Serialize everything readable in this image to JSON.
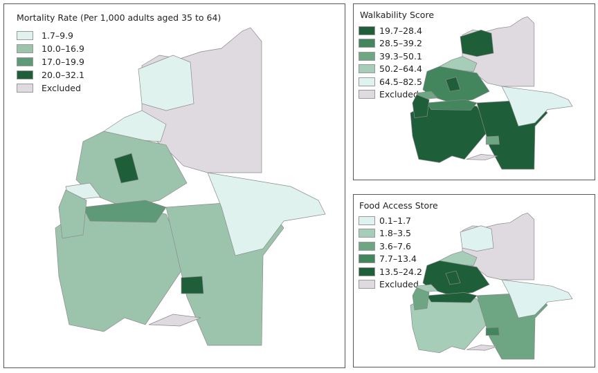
{
  "maps": [
    {
      "title": "Mortality Rate (Per 1,000 adults aged 35 to 64)",
      "legend": [
        {
          "label": "1.7–9.9",
          "color": "#dff2ee"
        },
        {
          "label": "10.0–16.9",
          "color": "#9cc4ad"
        },
        {
          "label": "17.0–19.9",
          "color": "#5e9a78"
        },
        {
          "label": "20.0–32.1",
          "color": "#1e5e38"
        },
        {
          "label": "Excluded",
          "color": "#dedadf"
        }
      ],
      "region_classes": [
        4,
        0,
        0,
        1,
        3,
        1,
        2,
        1,
        0,
        3,
        4,
        0,
        1
      ]
    },
    {
      "title": "Walkability Score",
      "legend": [
        {
          "label": "19.7–28.4",
          "color": "#1e5e38"
        },
        {
          "label": "28.5–39.2",
          "color": "#43855c"
        },
        {
          "label": "39.3–50.1",
          "color": "#6ea582"
        },
        {
          "label": "50.2–64.4",
          "color": "#a5cdb8"
        },
        {
          "label": "64.5–82.5",
          "color": "#def3ef"
        },
        {
          "label": "Excluded",
          "color": "#dedadf"
        }
      ],
      "region_classes": [
        5,
        0,
        3,
        1,
        0,
        0,
        1,
        0,
        4,
        2,
        5,
        2,
        0
      ]
    },
    {
      "title": "Food Access Store",
      "legend": [
        {
          "label": "0.1–1.7",
          "color": "#def3ef"
        },
        {
          "label": "1.8–3.5",
          "color": "#a5cdb8"
        },
        {
          "label": "3.6–7.6",
          "color": "#6ea582"
        },
        {
          "label": "7.7–13.4",
          "color": "#43855c"
        },
        {
          "label": "13.5–24.2",
          "color": "#1e5e38"
        },
        {
          "label": "Excluded",
          "color": "#dedadf"
        }
      ],
      "region_classes": [
        5,
        0,
        1,
        4,
        4,
        1,
        4,
        2,
        0,
        3,
        5,
        1,
        2
      ]
    }
  ]
}
